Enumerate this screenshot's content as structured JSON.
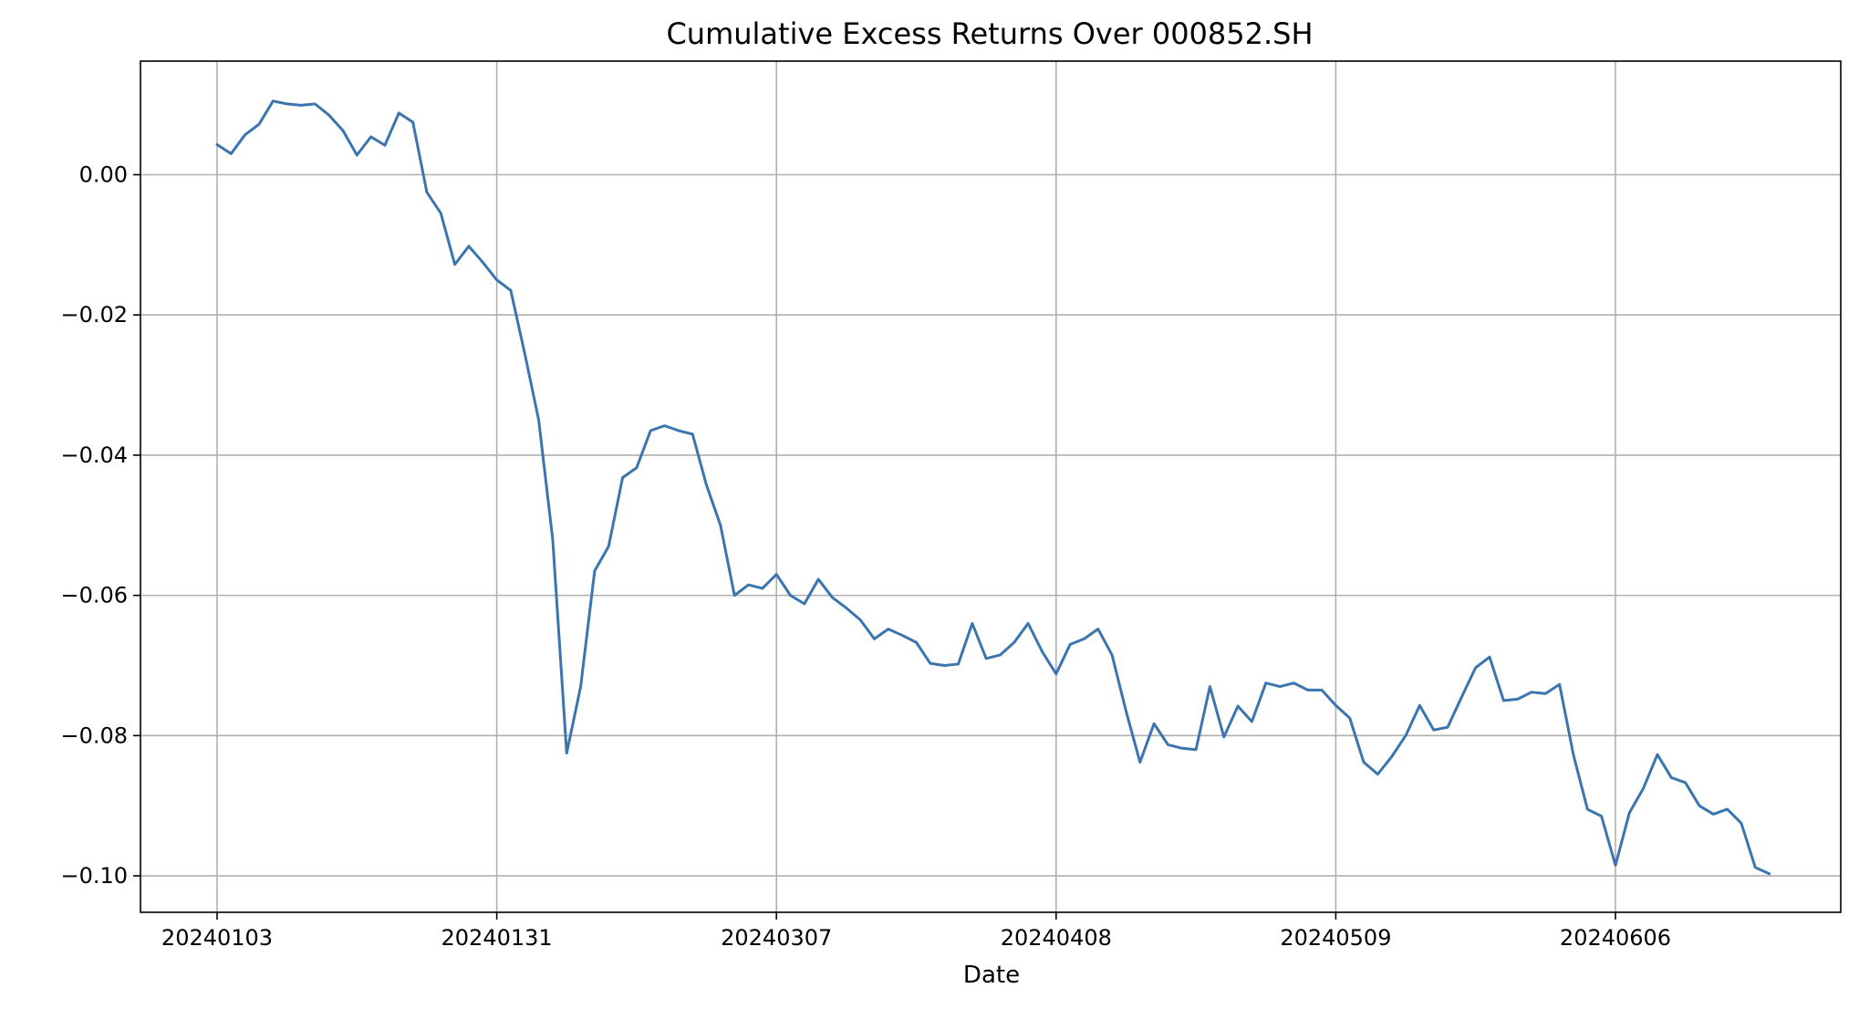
{
  "chart_data": {
    "type": "line",
    "title": "Cumulative Excess Returns Over 000852.SH",
    "xlabel": "Date",
    "ylabel": "",
    "grid": true,
    "ylim": [
      -0.1052,
      0.0162
    ],
    "y_ticks": [
      0.0,
      -0.02,
      -0.04,
      -0.06,
      -0.08,
      -0.1
    ],
    "y_tick_labels": [
      "0.00",
      "−0.02",
      "−0.04",
      "−0.06",
      "−0.08",
      "−0.10"
    ],
    "x_tick_labels": [
      "20240103",
      "20240131",
      "20240307",
      "20240408",
      "20240509",
      "20240606"
    ],
    "x_tick_index": [
      0,
      20,
      40,
      60,
      80,
      100
    ],
    "series": [
      {
        "color": "#3b75af",
        "values": [
          0.0043,
          0.003,
          0.0057,
          0.0072,
          0.0105,
          0.0101,
          0.0099,
          0.0101,
          0.0085,
          0.0063,
          0.0028,
          0.0054,
          0.0042,
          0.0088,
          0.0075,
          -0.0025,
          -0.0055,
          -0.0128,
          -0.0102,
          -0.0125,
          -0.015,
          -0.0165,
          -0.0255,
          -0.035,
          -0.052,
          -0.0825,
          -0.073,
          -0.0565,
          -0.053,
          -0.0432,
          -0.0418,
          -0.0365,
          -0.0358,
          -0.0365,
          -0.037,
          -0.0443,
          -0.05,
          -0.06,
          -0.0585,
          -0.059,
          -0.057,
          -0.06,
          -0.0612,
          -0.0577,
          -0.0603,
          -0.0618,
          -0.0635,
          -0.0662,
          -0.0648,
          -0.0657,
          -0.0667,
          -0.0697,
          -0.07,
          -0.0698,
          -0.064,
          -0.069,
          -0.0685,
          -0.0667,
          -0.064,
          -0.068,
          -0.0712,
          -0.067,
          -0.0662,
          -0.0648,
          -0.0685,
          -0.0765,
          -0.0838,
          -0.0783,
          -0.0813,
          -0.0818,
          -0.082,
          -0.073,
          -0.0802,
          -0.0758,
          -0.078,
          -0.0725,
          -0.073,
          -0.0725,
          -0.0735,
          -0.0735,
          -0.0757,
          -0.0775,
          -0.0838,
          -0.0855,
          -0.083,
          -0.08,
          -0.0757,
          -0.0792,
          -0.0788,
          -0.0745,
          -0.0703,
          -0.0688,
          -0.075,
          -0.0748,
          -0.0738,
          -0.074,
          -0.0727,
          -0.0828,
          -0.0905,
          -0.0915,
          -0.0985,
          -0.091,
          -0.0875,
          -0.0827,
          -0.086,
          -0.0867,
          -0.09,
          -0.0912,
          -0.0905,
          -0.0925,
          -0.0988,
          -0.0997
        ]
      }
    ]
  }
}
